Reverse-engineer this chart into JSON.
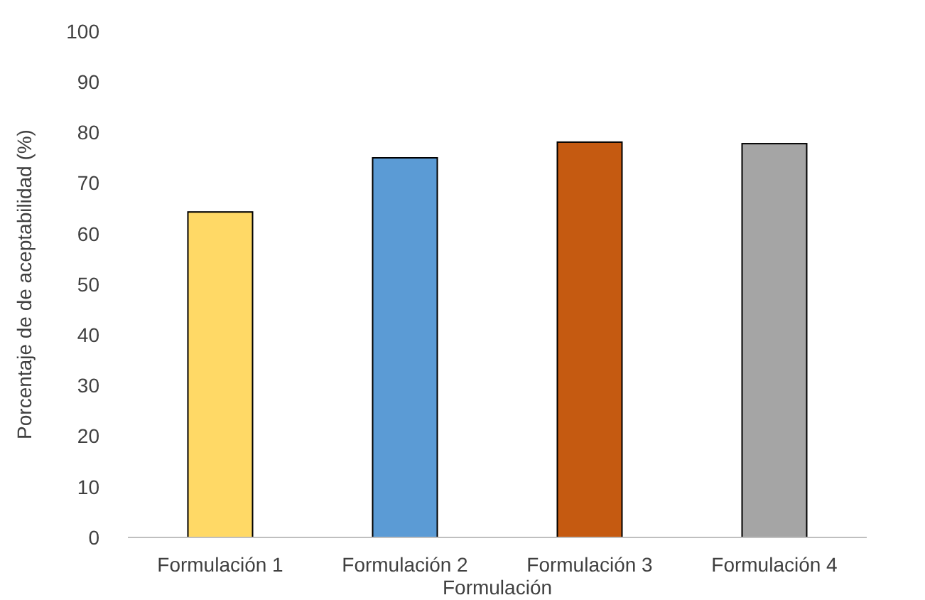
{
  "chart_data": {
    "type": "bar",
    "xlabel": "Formulación",
    "ylabel": "Porcentaje de de aceptabilidad (%)",
    "categories": [
      "Formulación 1",
      "Formulación 2",
      "Formulación 3",
      "Formulación 4"
    ],
    "values": [
      64.3,
      75.0,
      78.1,
      77.8
    ],
    "colors": [
      "#ffd966",
      "#5b9bd5",
      "#c55a11",
      "#a5a5a5"
    ],
    "ylim": [
      0,
      100
    ],
    "yticks": [
      0,
      10,
      20,
      30,
      40,
      50,
      60,
      70,
      80,
      90,
      100
    ],
    "grid": false
  }
}
